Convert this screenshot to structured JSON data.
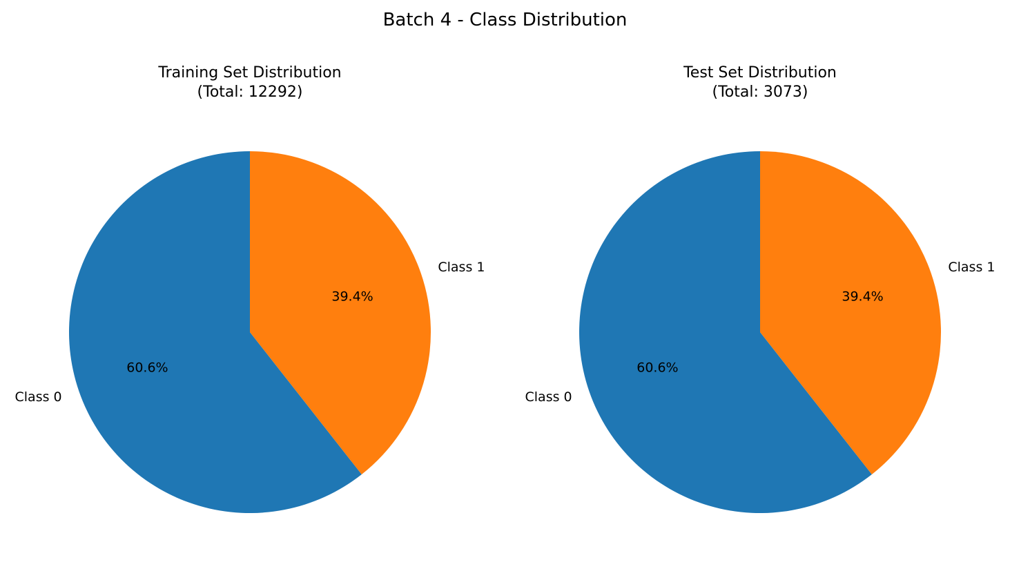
{
  "figure": {
    "suptitle": "Batch 4 - Class Distribution"
  },
  "chart_data": [
    {
      "type": "pie",
      "title": "Training Set Distribution",
      "subtitle": "(Total: 12292)",
      "start_angle_deg": 90,
      "direction": "counterclockwise",
      "categories": [
        "Class 0",
        "Class 1"
      ],
      "values": [
        60.6,
        39.4
      ],
      "data_labels": [
        "60.6%",
        "39.4%"
      ],
      "colors": [
        "#1f77b4",
        "#ff7f0e"
      ]
    },
    {
      "type": "pie",
      "title": "Test Set Distribution",
      "subtitle": "(Total: 3073)",
      "start_angle_deg": 90,
      "direction": "counterclockwise",
      "categories": [
        "Class 0",
        "Class 1"
      ],
      "values": [
        60.6,
        39.4
      ],
      "data_labels": [
        "60.6%",
        "39.4%"
      ],
      "colors": [
        "#1f77b4",
        "#ff7f0e"
      ]
    }
  ]
}
